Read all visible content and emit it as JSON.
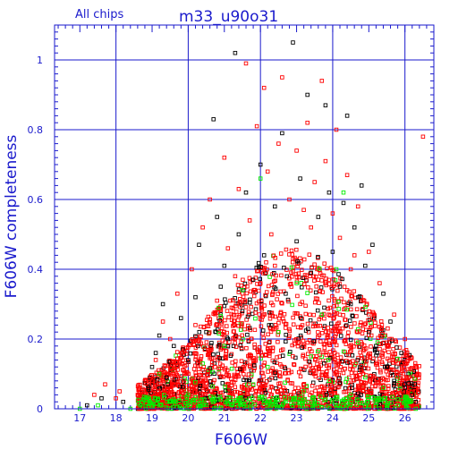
{
  "chart_data": {
    "type": "scatter",
    "title": "m33_u90o31",
    "subtitle": "All chips",
    "xlabel": "F606W",
    "ylabel": "F606W completeness",
    "xlim": [
      16.3,
      26.8
    ],
    "ylim": [
      0,
      1.1
    ],
    "xticks": [
      "17",
      "18",
      "19",
      "20",
      "21",
      "22",
      "23",
      "24",
      "25",
      "26"
    ],
    "yticks": [
      "0",
      "0.2",
      "0.4",
      "0.6",
      "0.8",
      "1"
    ],
    "grid": true,
    "marker": "open-square",
    "colors": {
      "frame": "#1a1acc",
      "grid": "#1a1acc",
      "black_series": "#000000",
      "red_series": "#ff0000",
      "green_series": "#00ee00"
    },
    "series": [
      {
        "color": "black",
        "points": [
          [
            17.2,
            0.01
          ],
          [
            17.6,
            0.03
          ],
          [
            18.2,
            0.02
          ],
          [
            18.9,
            0.06
          ],
          [
            19.0,
            0.12
          ],
          [
            19.1,
            0.16
          ],
          [
            19.2,
            0.21
          ],
          [
            19.3,
            0.3
          ],
          [
            19.4,
            0.09
          ],
          [
            19.6,
            0.18
          ],
          [
            19.8,
            0.26
          ],
          [
            20.0,
            0.14
          ],
          [
            20.2,
            0.32
          ],
          [
            20.3,
            0.47
          ],
          [
            20.5,
            0.22
          ],
          [
            20.7,
            0.83
          ],
          [
            20.8,
            0.55
          ],
          [
            20.9,
            0.35
          ],
          [
            21.0,
            0.41
          ],
          [
            21.1,
            0.2
          ],
          [
            21.3,
            1.02
          ],
          [
            21.4,
            0.5
          ],
          [
            21.5,
            0.28
          ],
          [
            21.6,
            0.62
          ],
          [
            21.8,
            0.37
          ],
          [
            22.0,
            0.7
          ],
          [
            22.1,
            0.44
          ],
          [
            22.3,
            0.24
          ],
          [
            22.4,
            0.58
          ],
          [
            22.6,
            0.79
          ],
          [
            22.7,
            0.33
          ],
          [
            22.9,
            1.05
          ],
          [
            23.0,
            0.48
          ],
          [
            23.1,
            0.66
          ],
          [
            23.3,
            0.9
          ],
          [
            23.4,
            0.39
          ],
          [
            23.6,
            0.55
          ],
          [
            23.7,
            0.27
          ],
          [
            23.8,
            0.87
          ],
          [
            23.9,
            0.62
          ],
          [
            24.0,
            0.45
          ],
          [
            24.2,
            0.35
          ],
          [
            24.3,
            0.59
          ],
          [
            24.4,
            0.84
          ],
          [
            24.5,
            0.3
          ],
          [
            24.6,
            0.52
          ],
          [
            24.8,
            0.64
          ],
          [
            24.9,
            0.41
          ],
          [
            25.0,
            0.22
          ],
          [
            25.1,
            0.47
          ],
          [
            25.2,
            0.18
          ],
          [
            25.4,
            0.33
          ],
          [
            25.5,
            0.12
          ],
          [
            25.6,
            0.25
          ],
          [
            25.7,
            0.08
          ],
          [
            25.9,
            0.16
          ],
          [
            26.0,
            0.06
          ],
          [
            26.1,
            0.1
          ],
          [
            26.2,
            0.04
          ],
          [
            26.3,
            0.02
          ]
        ]
      },
      {
        "color": "red",
        "points": [
          [
            17.4,
            0.04
          ],
          [
            17.7,
            0.07
          ],
          [
            18.0,
            0.03
          ],
          [
            18.1,
            0.05
          ],
          [
            18.6,
            0.04
          ],
          [
            19.0,
            0.08
          ],
          [
            19.1,
            0.14
          ],
          [
            19.3,
            0.25
          ],
          [
            19.5,
            0.2
          ],
          [
            19.7,
            0.33
          ],
          [
            19.9,
            0.1
          ],
          [
            20.1,
            0.4
          ],
          [
            20.2,
            0.24
          ],
          [
            20.4,
            0.52
          ],
          [
            20.6,
            0.6
          ],
          [
            20.8,
            0.31
          ],
          [
            21.0,
            0.72
          ],
          [
            21.1,
            0.46
          ],
          [
            21.3,
            0.38
          ],
          [
            21.4,
            0.63
          ],
          [
            21.6,
            0.99
          ],
          [
            21.7,
            0.54
          ],
          [
            21.9,
            0.81
          ],
          [
            22.0,
            0.36
          ],
          [
            22.1,
            0.92
          ],
          [
            22.2,
            0.68
          ],
          [
            22.3,
            0.5
          ],
          [
            22.5,
            0.76
          ],
          [
            22.6,
            0.95
          ],
          [
            22.8,
            0.6
          ],
          [
            22.9,
            0.43
          ],
          [
            23.0,
            0.74
          ],
          [
            23.2,
            0.57
          ],
          [
            23.3,
            0.82
          ],
          [
            23.5,
            0.65
          ],
          [
            23.6,
            0.37
          ],
          [
            23.7,
            0.94
          ],
          [
            23.8,
            0.71
          ],
          [
            24.0,
            0.56
          ],
          [
            24.1,
            0.8
          ],
          [
            24.2,
            0.49
          ],
          [
            24.4,
            0.67
          ],
          [
            24.5,
            0.4
          ],
          [
            24.7,
            0.58
          ],
          [
            24.8,
            0.31
          ],
          [
            25.0,
            0.45
          ],
          [
            25.1,
            0.26
          ],
          [
            25.3,
            0.36
          ],
          [
            25.5,
            0.19
          ],
          [
            25.7,
            0.27
          ],
          [
            25.8,
            0.13
          ],
          [
            26.0,
            0.2
          ],
          [
            26.1,
            0.09
          ],
          [
            26.3,
            0.05
          ],
          [
            26.5,
            0.78
          ],
          [
            21.2,
            0.29
          ],
          [
            22.4,
            0.41
          ],
          [
            23.4,
            0.52
          ],
          [
            24.6,
            0.44
          ],
          [
            20.9,
            0.17
          ]
        ]
      },
      {
        "color": "green",
        "points": [
          [
            17.0,
            0.0
          ],
          [
            17.5,
            0.01
          ],
          [
            18.4,
            0.0
          ],
          [
            19.0,
            0.01
          ],
          [
            19.2,
            0.1
          ],
          [
            19.6,
            0.02
          ],
          [
            20.0,
            0.04
          ],
          [
            20.4,
            0.13
          ],
          [
            20.7,
            0.03
          ],
          [
            21.0,
            0.18
          ],
          [
            21.2,
            0.01
          ],
          [
            21.5,
            0.34
          ],
          [
            21.8,
            0.07
          ],
          [
            22.0,
            0.66
          ],
          [
            22.2,
            0.12
          ],
          [
            22.5,
            0.22
          ],
          [
            22.7,
            0.02
          ],
          [
            23.0,
            0.36
          ],
          [
            23.2,
            0.05
          ],
          [
            23.4,
            0.15
          ],
          [
            23.7,
            0.27
          ],
          [
            23.9,
            0.08
          ],
          [
            24.1,
            0.4
          ],
          [
            24.3,
            0.62
          ],
          [
            24.5,
            0.04
          ],
          [
            24.7,
            0.19
          ],
          [
            24.9,
            0.09
          ],
          [
            25.2,
            0.03
          ],
          [
            25.4,
            0.06
          ],
          [
            25.8,
            0.01
          ],
          [
            26.0,
            0.02
          ],
          [
            26.3,
            0.0
          ]
        ]
      }
    ]
  }
}
